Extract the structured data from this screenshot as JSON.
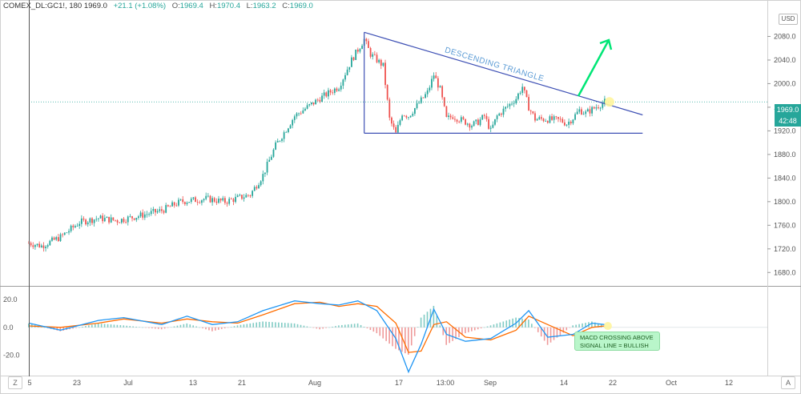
{
  "header": {
    "symbol": "COMEX_DL:GC1!, 180",
    "last": "1969.0",
    "change": "+21.1 (+1.08%)",
    "ohlc": [
      {
        "label": "O:",
        "value": "1969.4"
      },
      {
        "label": "H:",
        "value": "1970.4"
      },
      {
        "label": "L:",
        "value": "1963.2"
      },
      {
        "label": "C:",
        "value": "1969.0"
      }
    ]
  },
  "currency": "USD",
  "price_tag": "1969.0",
  "timer_tag": "42:48",
  "corner_left": "Z",
  "corner_right": "A",
  "annotations": {
    "triangle_label": "DESCENDING TRIANGLE",
    "macd_note": [
      "MACD CROSSING ABOVE",
      "SIGNAL LINE = BULLISH"
    ]
  },
  "colors": {
    "up": "#26a69a",
    "down": "#ef5350",
    "triangle": "#3f51b5",
    "triangle_label": "#5b9bd5",
    "arrow": "#00e676",
    "macd_line": "#2196f3",
    "signal_line": "#ff6d00",
    "price_line": "#26a69a",
    "highlight": "#fff59d"
  },
  "chart_data": [
    {
      "type": "candlestick",
      "title": "",
      "ylabel": "USD",
      "ylim": [
        1660,
        2120
      ],
      "yticks": [
        1680,
        1720,
        1760,
        1800,
        1840,
        1880,
        1920,
        1960,
        2000,
        2040,
        2080
      ],
      "ytick_labels": [
        "1680.0",
        "1720.0",
        "1760.0",
        "1800.0",
        "1840.0",
        "1880.0",
        "1920.0",
        "1960.0",
        "2000.0",
        "2040.0",
        "2080.0"
      ],
      "xticks": [
        "5",
        "23",
        "Jul",
        "13",
        "21",
        "Aug",
        "17",
        "13:00",
        "Sep",
        "14",
        "22",
        "Oct",
        "12",
        "19"
      ],
      "price_path": [
        {
          "date": "Jun 15",
          "value": 1730
        },
        {
          "date": "Jun 17",
          "value": 1725
        },
        {
          "date": "Jun 20",
          "value": 1740
        },
        {
          "date": "Jun 23",
          "value": 1765
        },
        {
          "date": "Jun 26",
          "value": 1772
        },
        {
          "date": "Jun 29",
          "value": 1768
        },
        {
          "date": "Jul 2",
          "value": 1775
        },
        {
          "date": "Jul 6",
          "value": 1785
        },
        {
          "date": "Jul 9",
          "value": 1800
        },
        {
          "date": "Jul 13",
          "value": 1805
        },
        {
          "date": "Jul 16",
          "value": 1800
        },
        {
          "date": "Jul 20",
          "value": 1812
        },
        {
          "date": "Jul 22",
          "value": 1845
        },
        {
          "date": "Jul 24",
          "value": 1895
        },
        {
          "date": "Jul 27",
          "value": 1945
        },
        {
          "date": "Jul 29",
          "value": 1960
        },
        {
          "date": "Jul 31",
          "value": 1975
        },
        {
          "date": "Aug 3",
          "value": 1995
        },
        {
          "date": "Aug 5",
          "value": 2040
        },
        {
          "date": "Aug 7",
          "value": 2075
        },
        {
          "date": "Aug 8",
          "value": 2050
        },
        {
          "date": "Aug 10",
          "value": 2030
        },
        {
          "date": "Aug 11",
          "value": 1940
        },
        {
          "date": "Aug 12",
          "value": 1915
        },
        {
          "date": "Aug 13",
          "value": 1950
        },
        {
          "date": "Aug 14",
          "value": 1945
        },
        {
          "date": "Aug 17",
          "value": 1985
        },
        {
          "date": "Aug 18",
          "value": 2015
        },
        {
          "date": "Aug 19",
          "value": 1990
        },
        {
          "date": "Aug 20",
          "value": 1940
        },
        {
          "date": "Aug 21",
          "value": 1945
        },
        {
          "date": "Aug 24",
          "value": 1930
        },
        {
          "date": "Aug 25",
          "value": 1935
        },
        {
          "date": "Aug 26",
          "value": 1945
        },
        {
          "date": "Aug 27",
          "value": 1920
        },
        {
          "date": "Aug 28",
          "value": 1945
        },
        {
          "date": "Aug 31",
          "value": 1975
        },
        {
          "date": "Sep 1",
          "value": 1995
        },
        {
          "date": "Sep 2",
          "value": 1960
        },
        {
          "date": "Sep 3",
          "value": 1940
        },
        {
          "date": "Sep 4",
          "value": 1940
        },
        {
          "date": "Sep 7",
          "value": 1938
        },
        {
          "date": "Sep 8",
          "value": 1932
        },
        {
          "date": "Sep 9",
          "value": 1942
        },
        {
          "date": "Sep 10",
          "value": 1955
        },
        {
          "date": "Sep 11",
          "value": 1950
        },
        {
          "date": "Sep 14",
          "value": 1969
        }
      ],
      "price_line": 1969.0,
      "descending_triangle": {
        "apex_start": {
          "date": "Aug 7",
          "value": 2087
        },
        "apex_end": {
          "date": "Sep 20",
          "value": 1947
        },
        "base": 1916,
        "base_end": "Sep 20"
      }
    },
    {
      "type": "line",
      "title": "",
      "ylim": [
        -34,
        28
      ],
      "yticks": [
        20,
        0,
        -20
      ],
      "ytick_labels": [
        "20.0",
        "0.0",
        "-20.0"
      ],
      "series": [
        {
          "role": "macd",
          "points": [
            {
              "date": "Jun 15",
              "value": 3
            },
            {
              "date": "Jun 20",
              "value": -2
            },
            {
              "date": "Jun 26",
              "value": 5
            },
            {
              "date": "Jun 30",
              "value": 7
            },
            {
              "date": "Jul 6",
              "value": 2
            },
            {
              "date": "Jul 10",
              "value": 8
            },
            {
              "date": "Jul 14",
              "value": 2
            },
            {
              "date": "Jul 18",
              "value": 4
            },
            {
              "date": "Jul 22",
              "value": 12
            },
            {
              "date": "Jul 27",
              "value": 19
            },
            {
              "date": "Jul 31",
              "value": 17
            },
            {
              "date": "Aug 3",
              "value": 16
            },
            {
              "date": "Aug 6",
              "value": 19
            },
            {
              "date": "Aug 9",
              "value": 12
            },
            {
              "date": "Aug 12",
              "value": -8
            },
            {
              "date": "Aug 14",
              "value": -32
            },
            {
              "date": "Aug 16",
              "value": -12
            },
            {
              "date": "Aug 18",
              "value": 13
            },
            {
              "date": "Aug 20",
              "value": -5
            },
            {
              "date": "Aug 23",
              "value": -10
            },
            {
              "date": "Aug 27",
              "value": -8
            },
            {
              "date": "Aug 31",
              "value": 3
            },
            {
              "date": "Sep 2",
              "value": 12
            },
            {
              "date": "Sep 5",
              "value": -7
            },
            {
              "date": "Sep 9",
              "value": -5
            },
            {
              "date": "Sep 12",
              "value": 3
            },
            {
              "date": "Sep 14",
              "value": 2
            }
          ]
        },
        {
          "role": "signal",
          "points": [
            {
              "date": "Jun 15",
              "value": 1
            },
            {
              "date": "Jun 20",
              "value": 0
            },
            {
              "date": "Jun 26",
              "value": 3
            },
            {
              "date": "Jun 30",
              "value": 6
            },
            {
              "date": "Jul 6",
              "value": 3
            },
            {
              "date": "Jul 10",
              "value": 6
            },
            {
              "date": "Jul 14",
              "value": 4
            },
            {
              "date": "Jul 18",
              "value": 3
            },
            {
              "date": "Jul 22",
              "value": 9
            },
            {
              "date": "Jul 27",
              "value": 17
            },
            {
              "date": "Jul 31",
              "value": 18
            },
            {
              "date": "Aug 3",
              "value": 15
            },
            {
              "date": "Aug 6",
              "value": 17
            },
            {
              "date": "Aug 9",
              "value": 15
            },
            {
              "date": "Aug 12",
              "value": 3
            },
            {
              "date": "Aug 14",
              "value": -18
            },
            {
              "date": "Aug 16",
              "value": -17
            },
            {
              "date": "Aug 18",
              "value": 2
            },
            {
              "date": "Aug 20",
              "value": 4
            },
            {
              "date": "Aug 23",
              "value": -7
            },
            {
              "date": "Aug 27",
              "value": -9
            },
            {
              "date": "Aug 31",
              "value": -2
            },
            {
              "date": "Sep 2",
              "value": 8
            },
            {
              "date": "Sep 5",
              "value": 2
            },
            {
              "date": "Sep 9",
              "value": -6
            },
            {
              "date": "Sep 12",
              "value": 0
            },
            {
              "date": "Sep 14",
              "value": 1
            }
          ]
        }
      ]
    }
  ]
}
